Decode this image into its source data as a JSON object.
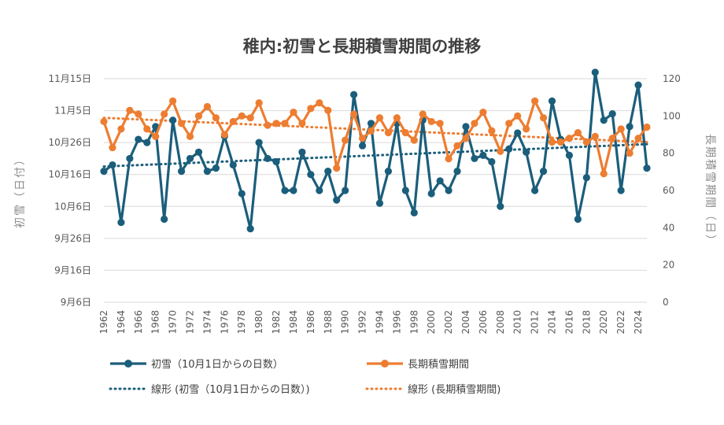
{
  "chart_data": {
    "type": "line",
    "title": "稚内:初雪と長期積雪期間の推移",
    "x": [
      1962,
      1963,
      1964,
      1965,
      1966,
      1967,
      1968,
      1969,
      1970,
      1971,
      1972,
      1973,
      1974,
      1975,
      1976,
      1977,
      1978,
      1979,
      1980,
      1981,
      1982,
      1983,
      1984,
      1985,
      1986,
      1987,
      1988,
      1989,
      1990,
      1991,
      1992,
      1993,
      1994,
      1995,
      1996,
      1997,
      1998,
      1999,
      2000,
      2001,
      2002,
      2003,
      2004,
      2005,
      2006,
      2007,
      2008,
      2009,
      2010,
      2011,
      2012,
      2013,
      2014,
      2015,
      2016,
      2017,
      2018,
      2019,
      2020,
      2021,
      2022,
      2023,
      2024,
      2025
    ],
    "x_tick_labels": [
      "1962",
      "1964",
      "1966",
      "1968",
      "1970",
      "1972",
      "1974",
      "1976",
      "1978",
      "1980",
      "1982",
      "1984",
      "1986",
      "1988",
      "1990",
      "1992",
      "1994",
      "1996",
      "1998",
      "2000",
      "2002",
      "2004",
      "2006",
      "2008",
      "2010",
      "2012",
      "2014",
      "2016",
      "2018",
      "2020",
      "2022",
      "2024"
    ],
    "left_axis": {
      "title": "初雪（日付）",
      "tick_labels": [
        "9月6日",
        "9月16日",
        "9月26日",
        "10月6日",
        "10月16日",
        "10月26日",
        "11月5日",
        "11月15日"
      ],
      "tick_values": [
        -25,
        -15,
        -5,
        5,
        15,
        25,
        35,
        45
      ],
      "ylim": [
        -25,
        45
      ],
      "unit": "days from Oct 1"
    },
    "right_axis": {
      "title": "長期積雪期間（日）",
      "tick_labels": [
        "0",
        "20",
        "40",
        "60",
        "80",
        "100",
        "120"
      ],
      "tick_values": [
        0,
        20,
        40,
        60,
        80,
        100,
        120
      ],
      "ylim": [
        0,
        120
      ]
    },
    "series": [
      {
        "name": "初雪（10月1日からの日数）",
        "axis": "left",
        "color": "#1b5e7b",
        "values": [
          16,
          18,
          0,
          20,
          26,
          25,
          30,
          1,
          32,
          16,
          20,
          22,
          16,
          17,
          27,
          18,
          9,
          -2,
          25,
          20,
          19,
          10,
          10,
          22,
          15,
          10,
          16,
          7,
          10,
          40,
          24,
          31,
          6,
          16,
          31,
          10,
          3,
          32,
          9,
          13,
          10,
          16,
          30,
          20,
          21,
          19,
          5,
          23,
          28,
          22,
          10,
          16,
          38,
          26,
          21,
          1,
          14,
          47,
          32,
          34,
          10,
          30,
          43,
          17
        ],
        "trend": {
          "name": "線形 (初雪（10月1日からの日数）)",
          "start": 17.5,
          "end": 24.5
        }
      },
      {
        "name": "長期積雪期間",
        "axis": "right",
        "color": "#ed7d31",
        "values": [
          97,
          83,
          93,
          103,
          101,
          93,
          89,
          101,
          108,
          96,
          89,
          100,
          105,
          99,
          90,
          97,
          100,
          99,
          107,
          95,
          96,
          96,
          102,
          96,
          104,
          107,
          103,
          72,
          87,
          101,
          88,
          92,
          99,
          91,
          99,
          91,
          87,
          101,
          97,
          96,
          77,
          84,
          88,
          96,
          102,
          92,
          81,
          96,
          100,
          93,
          108,
          99,
          86,
          86,
          88,
          91,
          86,
          89,
          69,
          88,
          93,
          80,
          88,
          94
        ],
        "trend": {
          "name": "線形 (長期積雪期間)",
          "start": 99,
          "end": 86
        }
      }
    ],
    "legend": {
      "position": "bottom",
      "items": [
        "初雪（10月1日からの日数）",
        "長期積雪期間",
        "線形 (初雪（10月1日からの日数）)",
        "線形 (長期積雪期間)"
      ]
    }
  }
}
